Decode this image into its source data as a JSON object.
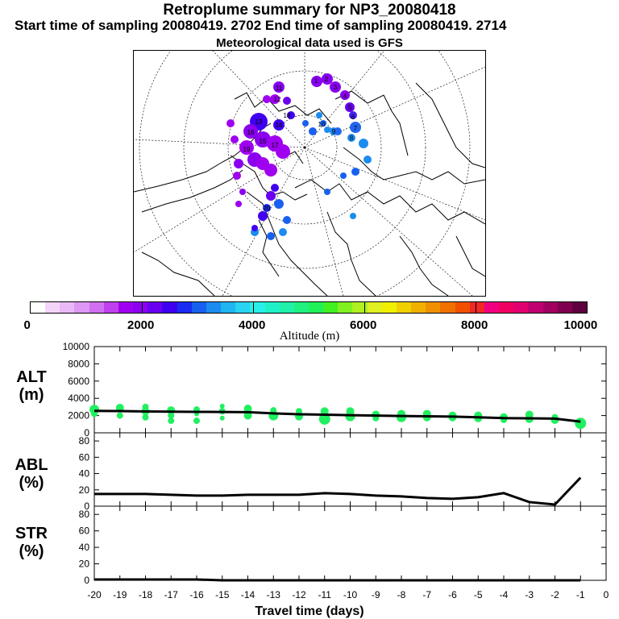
{
  "header": {
    "title": "Retroplume summary for NP3_20080418",
    "subtitle": "Start time of sampling 20080419.  2702     End time of sampling 20080419.  2714",
    "met": "Meteorological data used is GFS"
  },
  "colorbar": {
    "title": "Altitude (m)",
    "ticks": [
      "0",
      "2000",
      "4000",
      "6000",
      "8000",
      "10000"
    ],
    "colors": [
      "#ffffff",
      "#f4d4f8",
      "#eab8f6",
      "#de98f4",
      "#d070f0",
      "#c040ee",
      "#a000f0",
      "#8c00f0",
      "#6a00f0",
      "#4000f0",
      "#1a2cf0",
      "#1860f0",
      "#1c8cf0",
      "#20b4f0",
      "#28d4f0",
      "#28f0e8",
      "#20f0c8",
      "#20f0a8",
      "#20f080",
      "#20f058",
      "#40f020",
      "#80f020",
      "#b0f020",
      "#e0f020",
      "#f0f000",
      "#f0d000",
      "#f0b000",
      "#f09000",
      "#f07000",
      "#f05000",
      "#f02828",
      "#f00080",
      "#f00060",
      "#e00070",
      "#c00070",
      "#a00060",
      "#800050",
      "#600040"
    ],
    "axis_max": 10000
  },
  "map_labels": [
    "1",
    "2",
    "3",
    "4",
    "5",
    "6",
    "7",
    "8",
    "9",
    "10",
    "11",
    "12",
    "13",
    "14",
    "15",
    "16",
    "17",
    "18",
    "19",
    "20"
  ],
  "chart_data": [
    {
      "type": "scatter",
      "name": "ALT",
      "ylabel": "ALT\n(m)",
      "ylabel_lines": [
        "ALT",
        "(m)"
      ],
      "ylim": [
        0,
        10000
      ],
      "yticks": [
        "0",
        "2000",
        "4000",
        "6000",
        "8000",
        "10000"
      ],
      "ytick_values": [
        0,
        2000,
        4000,
        6000,
        8000,
        10000
      ],
      "xlim": [
        -20,
        0
      ],
      "line": {
        "x": [
          -20,
          -19,
          -18,
          -17,
          -16,
          -15,
          -14,
          -13,
          -12,
          -11,
          -10,
          -9,
          -8,
          -7,
          -6,
          -5,
          -4,
          -3,
          -2,
          -1
        ],
        "y": [
          2550,
          2520,
          2480,
          2450,
          2430,
          2420,
          2400,
          2250,
          2150,
          2100,
          2050,
          2000,
          1950,
          1920,
          1880,
          1800,
          1700,
          1680,
          1650,
          1300
        ]
      },
      "points": [
        {
          "x": -20,
          "y": 2700,
          "s": 6
        },
        {
          "x": -20,
          "y": 2200,
          "s": 4
        },
        {
          "x": -19,
          "y": 2900,
          "s": 5
        },
        {
          "x": -19,
          "y": 2000,
          "s": 4
        },
        {
          "x": -18,
          "y": 3000,
          "s": 4
        },
        {
          "x": -18,
          "y": 2500,
          "s": 5
        },
        {
          "x": -18,
          "y": 1800,
          "s": 4
        },
        {
          "x": -17,
          "y": 2600,
          "s": 5
        },
        {
          "x": -17,
          "y": 2000,
          "s": 4
        },
        {
          "x": -17,
          "y": 1400,
          "s": 4
        },
        {
          "x": -16,
          "y": 2700,
          "s": 4
        },
        {
          "x": -16,
          "y": 2200,
          "s": 3
        },
        {
          "x": -16,
          "y": 1400,
          "s": 4
        },
        {
          "x": -15,
          "y": 3100,
          "s": 3
        },
        {
          "x": -15,
          "y": 2500,
          "s": 4
        },
        {
          "x": -15,
          "y": 1700,
          "s": 3
        },
        {
          "x": -14,
          "y": 2800,
          "s": 5
        },
        {
          "x": -14,
          "y": 2000,
          "s": 5
        },
        {
          "x": -13,
          "y": 2600,
          "s": 4
        },
        {
          "x": -13,
          "y": 2000,
          "s": 6
        },
        {
          "x": -12,
          "y": 2500,
          "s": 4
        },
        {
          "x": -12,
          "y": 1900,
          "s": 5
        },
        {
          "x": -11,
          "y": 2500,
          "s": 5
        },
        {
          "x": -11,
          "y": 1600,
          "s": 7
        },
        {
          "x": -10,
          "y": 2500,
          "s": 5
        },
        {
          "x": -10,
          "y": 1900,
          "s": 6
        },
        {
          "x": -9,
          "y": 2100,
          "s": 5
        },
        {
          "x": -9,
          "y": 1700,
          "s": 4
        },
        {
          "x": -8,
          "y": 2200,
          "s": 5
        },
        {
          "x": -8,
          "y": 1800,
          "s": 6
        },
        {
          "x": -7,
          "y": 2200,
          "s": 5
        },
        {
          "x": -7,
          "y": 1800,
          "s": 5
        },
        {
          "x": -6,
          "y": 2000,
          "s": 5
        },
        {
          "x": -6,
          "y": 1800,
          "s": 5
        },
        {
          "x": -5,
          "y": 2000,
          "s": 5
        },
        {
          "x": -5,
          "y": 1700,
          "s": 5
        },
        {
          "x": -4,
          "y": 1800,
          "s": 5
        },
        {
          "x": -4,
          "y": 1500,
          "s": 4
        },
        {
          "x": -3,
          "y": 2100,
          "s": 5
        },
        {
          "x": -3,
          "y": 1600,
          "s": 5
        },
        {
          "x": -2,
          "y": 1800,
          "s": 4
        },
        {
          "x": -2,
          "y": 1500,
          "s": 5
        },
        {
          "x": -1,
          "y": 1100,
          "s": 7
        }
      ],
      "point_color": "#20f060"
    },
    {
      "type": "line",
      "name": "ABL",
      "ylabel_lines": [
        "ABL",
        "(%)"
      ],
      "ylim": [
        0,
        90
      ],
      "yticks": [
        "0",
        "20",
        "40",
        "60",
        "80"
      ],
      "ytick_values": [
        0,
        20,
        40,
        60,
        80
      ],
      "xlim": [
        -20,
        0
      ],
      "x": [
        -20,
        -19,
        -18,
        -17,
        -16,
        -15,
        -14,
        -13,
        -12,
        -11,
        -10,
        -9,
        -8,
        -7,
        -6,
        -5,
        -4,
        -3,
        -2,
        -1
      ],
      "y": [
        15,
        15,
        15,
        14,
        13,
        13,
        14,
        14,
        14,
        16,
        15,
        13,
        12,
        10,
        9,
        11,
        16,
        5,
        2,
        35
      ]
    },
    {
      "type": "line",
      "name": "STR",
      "ylabel_lines": [
        "STR",
        "(%)"
      ],
      "ylim": [
        0,
        90
      ],
      "yticks": [
        "0",
        "20",
        "40",
        "60",
        "80"
      ],
      "ytick_values": [
        0,
        20,
        40,
        60,
        80
      ],
      "xlim": [
        -20,
        0
      ],
      "x": [
        -20,
        -19,
        -18,
        -17,
        -16,
        -15,
        -14,
        -13,
        -12,
        -11,
        -10,
        -9,
        -8,
        -7,
        -6,
        -5,
        -4,
        -3,
        -2,
        -1
      ],
      "y": [
        1,
        1,
        1,
        1,
        1,
        0,
        0,
        0,
        0,
        0,
        0,
        0,
        0,
        0,
        0,
        0,
        0,
        0,
        0,
        0
      ],
      "xlabel": "Travel time (days)",
      "xticks": [
        "-20",
        "-19",
        "-18",
        "-17",
        "-16",
        "-15",
        "-14",
        "-13",
        "-12",
        "-11",
        "-10",
        "-9",
        "-8",
        "-7",
        "-6",
        "-5",
        "-4",
        "-3",
        "-2",
        "-1",
        "0"
      ],
      "xtick_values": [
        -20,
        -19,
        -18,
        -17,
        -16,
        -15,
        -14,
        -13,
        -12,
        -11,
        -10,
        -9,
        -8,
        -7,
        -6,
        -5,
        -4,
        -3,
        -2,
        -1,
        0
      ]
    }
  ]
}
